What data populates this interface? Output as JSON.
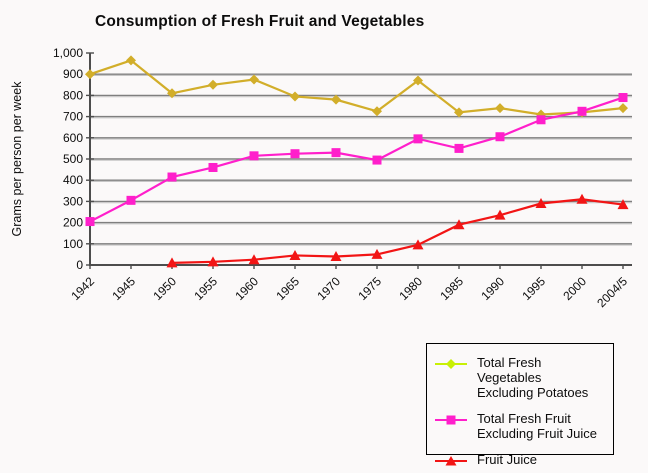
{
  "title": "Consumption of Fresh Fruit and Vegetables",
  "colors": {
    "background": "#fbf9f9",
    "gridline_dark": "#7f7f7f",
    "gridline_light": "#c6c6c6",
    "axis": "#4d4d4d",
    "text": "#0d0d0d",
    "legend_border": "#000000"
  },
  "chart_data": {
    "type": "line",
    "title": "Consumption of Fresh Fruit and Vegetables",
    "xlabel": "",
    "ylabel": "Grams per person per week",
    "ylim": [
      0,
      1000
    ],
    "ytick_step": 100,
    "ytick_labels": [
      "0",
      "100",
      "200",
      "300",
      "400",
      "500",
      "600",
      "700",
      "800",
      "900",
      "1,000"
    ],
    "grid": "horizontal",
    "legend_position": "bottom-right",
    "categories": [
      "1942",
      "1945",
      "1950",
      "1955",
      "1960",
      "1965",
      "1970",
      "1975",
      "1980",
      "1985",
      "1990",
      "1995",
      "2000",
      "2004/5"
    ],
    "series": [
      {
        "name": "Total Fresh Vegetables Excluding Potatoes",
        "legend_label": "Total Fresh Vegetables\nExcluding Potatoes",
        "marker": "diamond",
        "color": "#d2ae2a",
        "legend_color": "#c8f005",
        "values": [
          900,
          965,
          810,
          850,
          875,
          795,
          780,
          725,
          870,
          720,
          740,
          710,
          720,
          740
        ]
      },
      {
        "name": "Total Fresh Fruit Excluding Fruit Juice",
        "legend_label": "Total Fresh Fruit\nExcluding Fruit Juice",
        "marker": "square",
        "color": "#ff1fcb",
        "legend_color": "#ff1fcb",
        "values": [
          205,
          305,
          415,
          460,
          515,
          525,
          530,
          495,
          595,
          550,
          605,
          685,
          725,
          790
        ]
      },
      {
        "name": "Fruit Juice",
        "legend_label": "Fruit Juice",
        "marker": "triangle",
        "color": "#f21515",
        "legend_color": "#f21515",
        "values": [
          null,
          null,
          10,
          15,
          25,
          45,
          40,
          50,
          95,
          190,
          235,
          290,
          310,
          285
        ]
      }
    ]
  }
}
